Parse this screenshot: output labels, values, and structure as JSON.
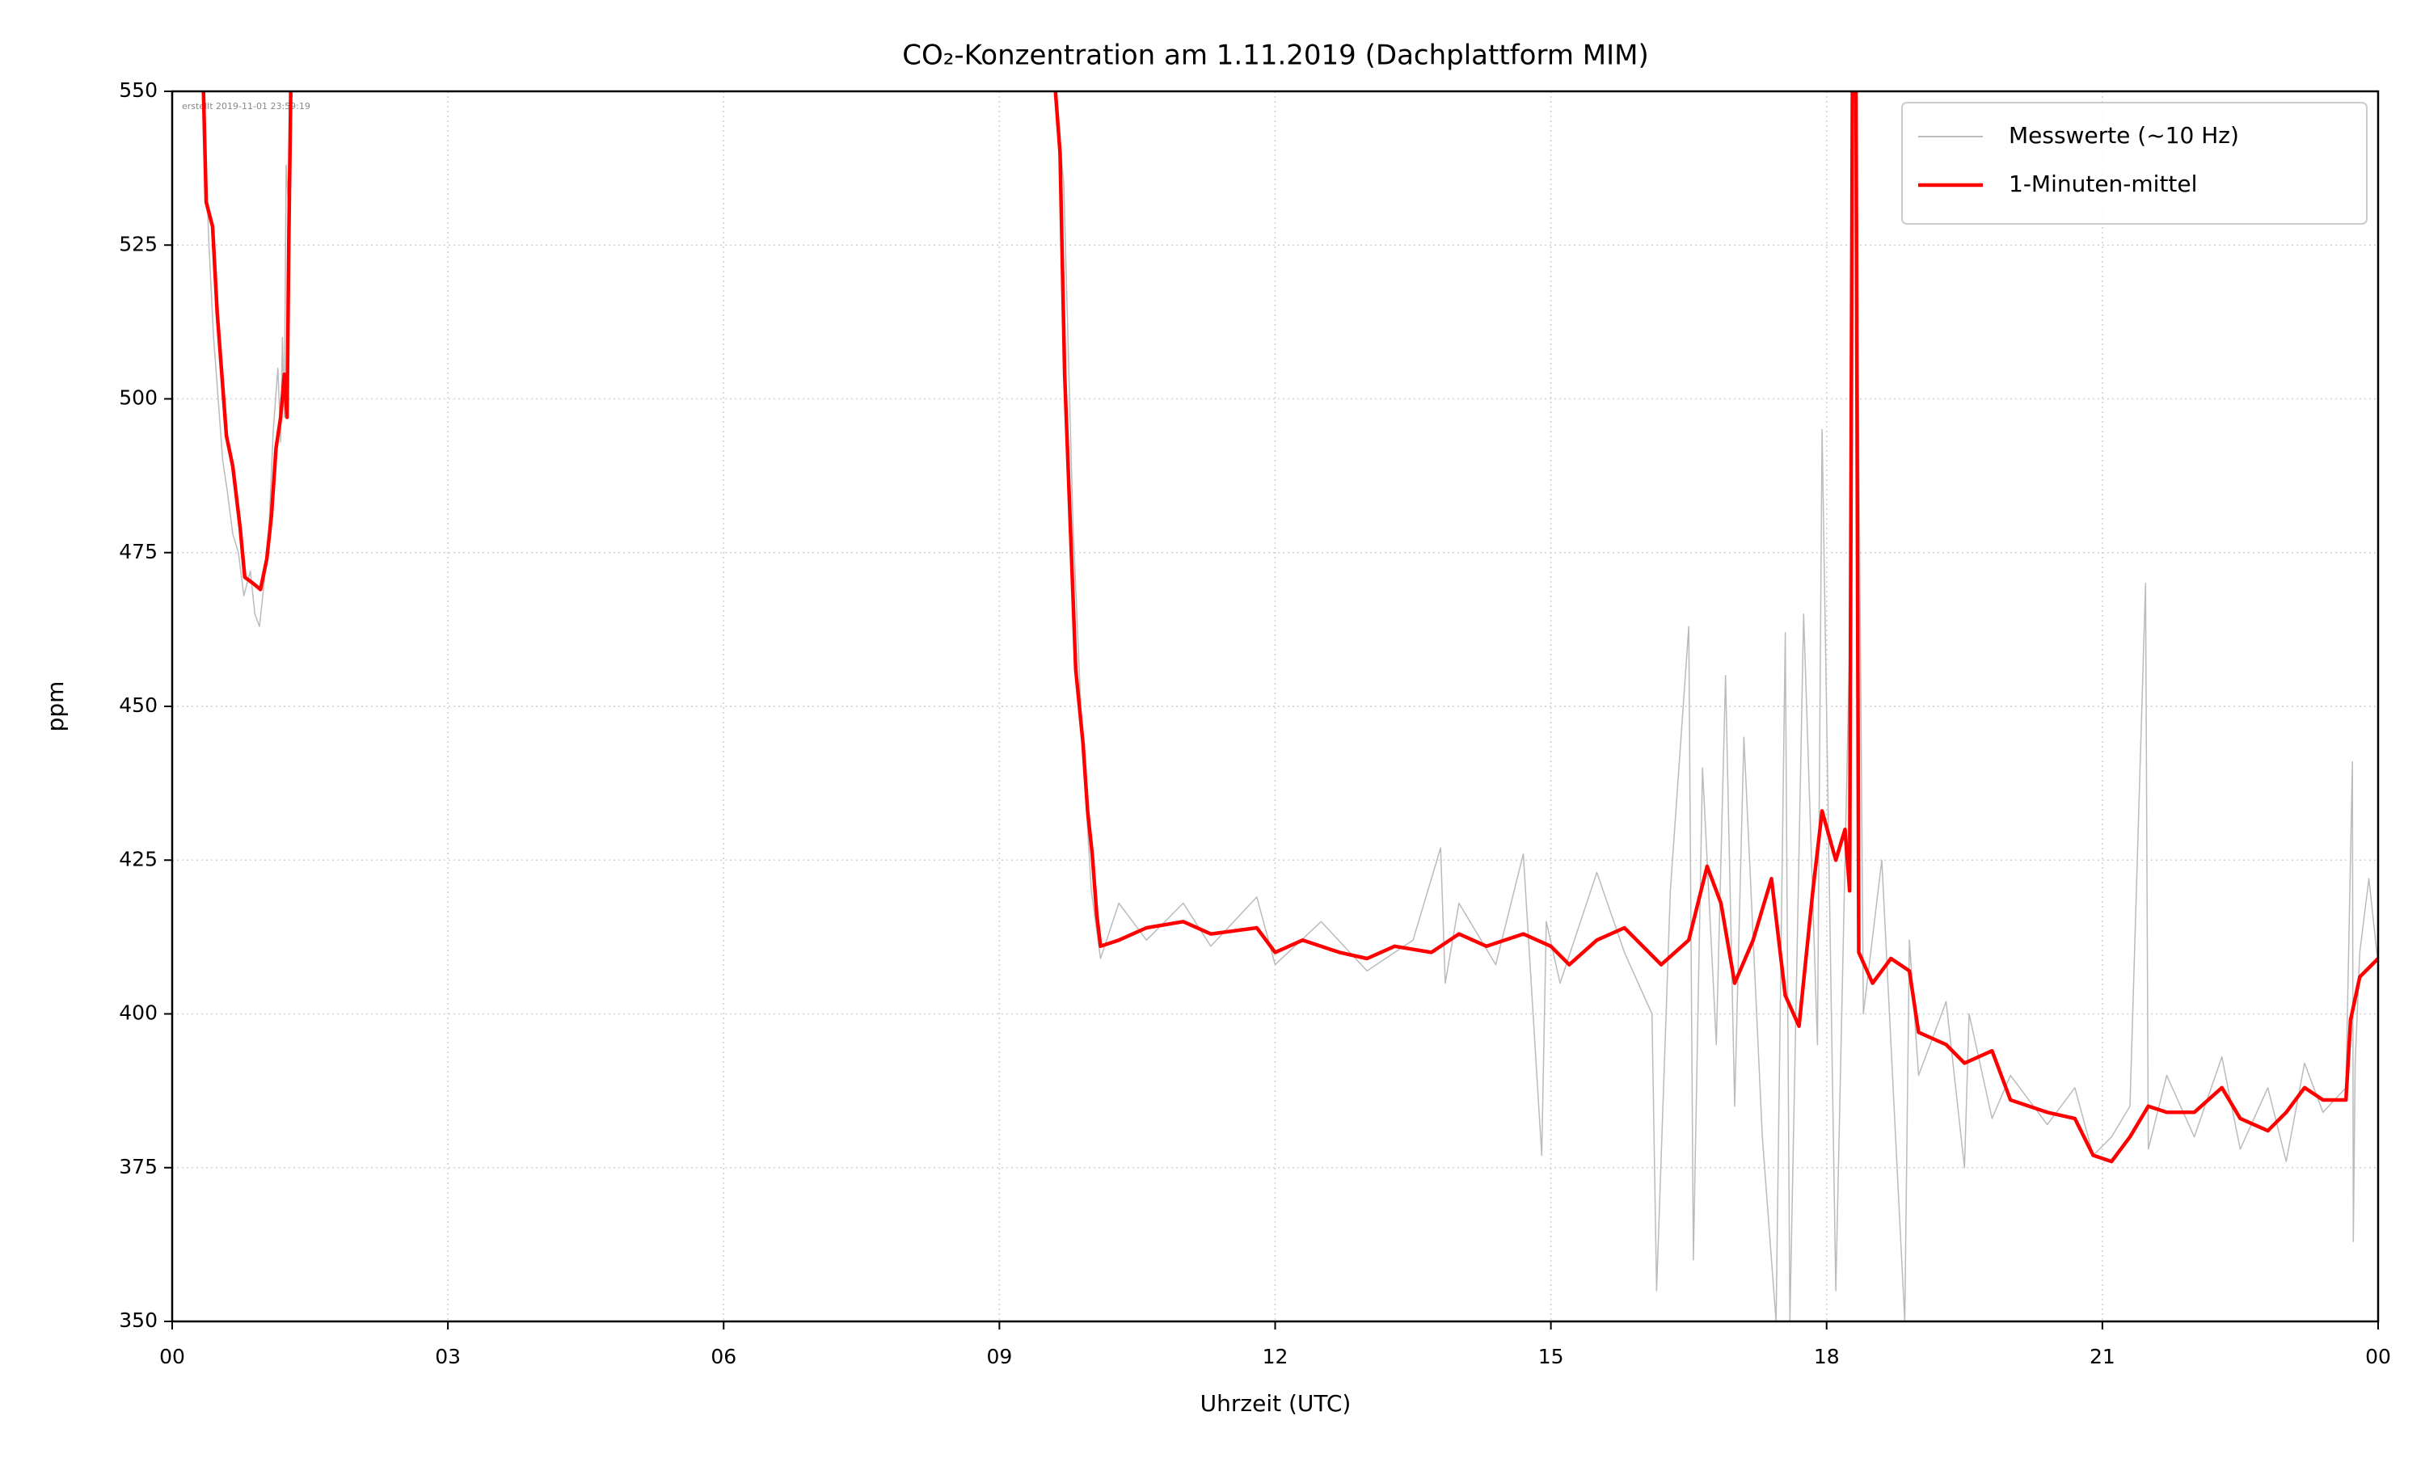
{
  "chart_data": {
    "type": "line",
    "title": "CO₂-Konzentration am 1.11.2019 (Dachplattform MIM)",
    "annotation": "erstellt 2019-11-01 23:59:19",
    "xlabel": "Uhrzeit (UTC)",
    "ylabel": "ppm",
    "xlim": [
      0,
      24
    ],
    "ylim": [
      350,
      550
    ],
    "xticks": [
      {
        "value": 0,
        "label": "00"
      },
      {
        "value": 3,
        "label": "03"
      },
      {
        "value": 6,
        "label": "06"
      },
      {
        "value": 9,
        "label": "09"
      },
      12,
      15,
      18,
      21,
      {
        "value": 24,
        "label": "00"
      }
    ],
    "yticks": [
      350,
      375,
      400,
      425,
      450,
      475,
      500,
      525,
      550
    ],
    "grid": true,
    "legend": "upper right",
    "series": [
      {
        "name": "Messwerte (~10 Hz)",
        "color": "#bbbbbb",
        "x": [
          0.34,
          0.4,
          0.45,
          0.5,
          0.55,
          0.6,
          0.66,
          0.72,
          0.78,
          0.85,
          0.9,
          0.95,
          1.0,
          1.05,
          1.1,
          1.15,
          1.18,
          1.2,
          1.22,
          1.24,
          1.27,
          1.29,
          null,
          9.61,
          9.7,
          9.8,
          9.9,
          10.0,
          10.1,
          10.3,
          10.6,
          11.0,
          11.3,
          11.8,
          12.0,
          12.5,
          13.0,
          13.5,
          13.8,
          13.85,
          14.0,
          14.4,
          14.7,
          14.9,
          14.95,
          15.1,
          15.5,
          15.8,
          16.1,
          16.15,
          16.3,
          16.5,
          16.55,
          16.65,
          16.8,
          16.9,
          17.0,
          17.1,
          17.3,
          17.45,
          17.55,
          17.6,
          17.75,
          17.9,
          17.95,
          18.1,
          18.25,
          18.28,
          null,
          18.32,
          18.4,
          18.6,
          18.85,
          18.9,
          19.0,
          19.3,
          19.5,
          19.55,
          19.8,
          20.0,
          20.4,
          20.7,
          20.9,
          21.1,
          21.3,
          21.47,
          21.5,
          21.7,
          22.0,
          22.3,
          22.5,
          22.8,
          23.0,
          23.2,
          23.4,
          23.65,
          23.72,
          23.73,
          23.75,
          23.8,
          23.9,
          24.0
        ],
        "values": [
          550,
          525,
          510,
          500,
          490,
          485,
          478,
          475,
          468,
          472,
          465,
          463,
          470,
          478,
          495,
          505,
          493,
          510,
          497,
          538,
          530,
          550,
          null,
          550,
          535,
          480,
          445,
          420,
          409,
          418,
          412,
          418,
          411,
          419,
          408,
          415,
          407,
          412,
          427,
          405,
          418,
          408,
          426,
          377,
          415,
          405,
          423,
          410,
          400,
          355,
          420,
          463,
          360,
          440,
          395,
          455,
          385,
          445,
          380,
          350,
          462,
          350,
          465,
          395,
          495,
          355,
          460,
          550,
          null,
          550,
          400,
          425,
          350,
          412,
          390,
          402,
          375,
          400,
          383,
          390,
          382,
          388,
          377,
          380,
          385,
          470,
          378,
          390,
          380,
          393,
          378,
          388,
          376,
          392,
          384,
          388,
          441,
          363,
          392,
          410,
          422,
          408
        ]
      },
      {
        "name": "1-Minuten-mittel",
        "color": "#ff0000",
        "x": [
          0.34,
          0.37,
          0.44,
          0.49,
          0.54,
          0.59,
          0.66,
          0.74,
          0.79,
          0.88,
          0.96,
          1.03,
          1.08,
          1.13,
          1.18,
          1.22,
          1.25,
          1.27,
          1.29,
          null,
          9.61,
          9.66,
          9.71,
          9.76,
          9.83,
          9.91,
          9.96,
          10.01,
          10.06,
          10.1,
          10.3,
          10.6,
          11.0,
          11.3,
          11.8,
          12.0,
          12.3,
          12.7,
          13.0,
          13.3,
          13.7,
          14.0,
          14.3,
          14.7,
          15.0,
          15.2,
          15.5,
          15.8,
          16.2,
          16.5,
          16.7,
          16.85,
          17.0,
          17.2,
          17.4,
          17.55,
          17.7,
          17.85,
          17.95,
          18.1,
          18.2,
          18.25,
          18.28,
          null,
          18.32,
          18.35,
          18.5,
          18.7,
          18.9,
          19.0,
          19.3,
          19.5,
          19.8,
          20.0,
          20.4,
          20.7,
          20.9,
          21.1,
          21.3,
          21.5,
          21.7,
          22.0,
          22.3,
          22.5,
          22.8,
          23.0,
          23.2,
          23.4,
          23.65,
          23.7,
          23.8,
          24.0
        ],
        "values": [
          550,
          532,
          528,
          514,
          504,
          494,
          489,
          479,
          471,
          470,
          469,
          474,
          481,
          492,
          497,
          504,
          497,
          527,
          550,
          null,
          550,
          540,
          504,
          484,
          456,
          444,
          433,
          426,
          416,
          411,
          412,
          414,
          415,
          413,
          414,
          410,
          412,
          410,
          409,
          411,
          410,
          413,
          411,
          413,
          411,
          408,
          412,
          414,
          408,
          412,
          424,
          418,
          405,
          412,
          422,
          403,
          398,
          420,
          433,
          425,
          430,
          420,
          550,
          null,
          550,
          410,
          405,
          409,
          407,
          397,
          395,
          392,
          394,
          386,
          384,
          383,
          377,
          376,
          380,
          385,
          384,
          384,
          388,
          383,
          381,
          384,
          388,
          386,
          386,
          399,
          406,
          409
        ]
      }
    ]
  }
}
